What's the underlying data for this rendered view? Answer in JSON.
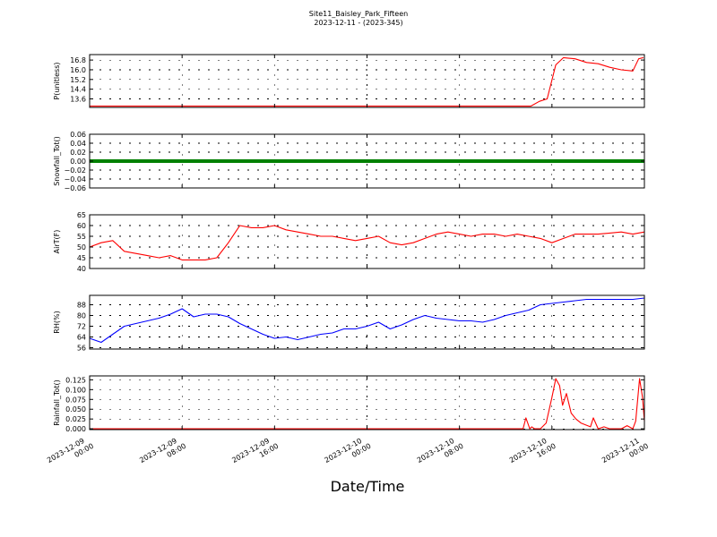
{
  "figure": {
    "title_line1": "Site11_Baisley_Park_Fifteen",
    "title_line2": "2023-12-11 - (2023-345)",
    "xlabel": "Date/Time"
  },
  "chart_data": [
    {
      "type": "line",
      "ylabel": "P(unitless)",
      "ylim": [
        12.9,
        17.25
      ],
      "yticks": [
        "13.6",
        "14.4",
        "15.2",
        "16.0",
        "16.8"
      ],
      "color": "#ff0000",
      "grid": true,
      "x": [
        "2023-12-09 00:00",
        "2023-12-10 14:10",
        "2023-12-10 14:55",
        "2023-12-10 15:35",
        "2023-12-10 16:20",
        "2023-12-10 17:00",
        "2023-12-10 18:00",
        "2023-12-10 19:00",
        "2023-12-10 20:00",
        "2023-12-10 21:00",
        "2023-12-10 22:00",
        "2023-12-10 23:00",
        "2023-12-10 23:30",
        "2023-12-10 23:55"
      ],
      "values": [
        13.0,
        13.0,
        13.4,
        13.6,
        16.4,
        17.0,
        16.9,
        16.6,
        16.5,
        16.2,
        16.0,
        15.9,
        16.9,
        17.0
      ]
    },
    {
      "type": "line",
      "ylabel": "Snowfall_Tot()",
      "ylim": [
        -0.06,
        0.06
      ],
      "yticks": [
        "−0.06",
        "−0.04",
        "−0.02",
        "0.00",
        "0.02",
        "0.04",
        "0.06"
      ],
      "color": "#008000",
      "grid": true,
      "x": [
        "2023-12-09 00:00",
        "2023-12-11 00:00"
      ],
      "values": [
        0,
        0
      ]
    },
    {
      "type": "line",
      "ylabel": "AirT(F)",
      "ylim": [
        40,
        65
      ],
      "yticks": [
        "40",
        "45",
        "50",
        "55",
        "60",
        "65"
      ],
      "color": "#ff0000",
      "grid": true,
      "x": [
        "2023-12-09 00:00",
        "2023-12-09 01:00",
        "2023-12-09 02:00",
        "2023-12-09 03:00",
        "2023-12-09 04:00",
        "2023-12-09 05:00",
        "2023-12-09 06:00",
        "2023-12-09 07:00",
        "2023-12-09 08:00",
        "2023-12-09 09:00",
        "2023-12-09 10:00",
        "2023-12-09 11:00",
        "2023-12-09 12:00",
        "2023-12-09 13:00",
        "2023-12-09 14:00",
        "2023-12-09 15:00",
        "2023-12-09 16:00",
        "2023-12-09 17:00",
        "2023-12-09 18:00",
        "2023-12-09 19:00",
        "2023-12-09 20:00",
        "2023-12-09 21:00",
        "2023-12-09 22:00",
        "2023-12-09 23:00",
        "2023-12-10 00:00",
        "2023-12-10 01:00",
        "2023-12-10 02:00",
        "2023-12-10 03:00",
        "2023-12-10 04:00",
        "2023-12-10 05:00",
        "2023-12-10 06:00",
        "2023-12-10 07:00",
        "2023-12-10 08:00",
        "2023-12-10 09:00",
        "2023-12-10 10:00",
        "2023-12-10 11:00",
        "2023-12-10 12:00",
        "2023-12-10 13:00",
        "2023-12-10 14:00",
        "2023-12-10 15:00",
        "2023-12-10 16:00",
        "2023-12-10 17:00",
        "2023-12-10 18:00",
        "2023-12-10 19:00",
        "2023-12-10 20:00",
        "2023-12-10 21:00",
        "2023-12-10 22:00",
        "2023-12-10 23:00",
        "2023-12-11 00:00"
      ],
      "values": [
        50,
        52,
        53,
        48,
        47,
        46,
        45,
        46,
        44,
        44,
        44,
        45,
        52,
        60,
        59,
        59,
        60,
        58,
        57,
        56,
        55,
        55,
        54,
        53,
        54,
        55,
        52,
        51,
        52,
        54,
        56,
        57,
        56,
        55,
        56,
        56,
        55,
        56,
        55,
        54,
        52,
        54,
        56,
        56,
        56,
        56.5,
        57,
        56,
        57
      ]
    },
    {
      "type": "line",
      "ylabel": "RH(%)",
      "ylim": [
        55,
        95
      ],
      "yticks": [
        "56",
        "64",
        "72",
        "80",
        "88"
      ],
      "color": "#0000ff",
      "grid": true,
      "x": [
        "2023-12-09 00:00",
        "2023-12-09 01:00",
        "2023-12-09 02:00",
        "2023-12-09 03:00",
        "2023-12-09 04:00",
        "2023-12-09 05:00",
        "2023-12-09 06:00",
        "2023-12-09 07:00",
        "2023-12-09 08:00",
        "2023-12-09 09:00",
        "2023-12-09 10:00",
        "2023-12-09 11:00",
        "2023-12-09 12:00",
        "2023-12-09 13:00",
        "2023-12-09 14:00",
        "2023-12-09 15:00",
        "2023-12-09 16:00",
        "2023-12-09 17:00",
        "2023-12-09 18:00",
        "2023-12-09 19:00",
        "2023-12-09 20:00",
        "2023-12-09 21:00",
        "2023-12-09 22:00",
        "2023-12-09 23:00",
        "2023-12-10 00:00",
        "2023-12-10 01:00",
        "2023-12-10 02:00",
        "2023-12-10 03:00",
        "2023-12-10 04:00",
        "2023-12-10 05:00",
        "2023-12-10 06:00",
        "2023-12-10 07:00",
        "2023-12-10 08:00",
        "2023-12-10 09:00",
        "2023-12-10 10:00",
        "2023-12-10 11:00",
        "2023-12-10 12:00",
        "2023-12-10 13:00",
        "2023-12-10 14:00",
        "2023-12-10 15:00",
        "2023-12-10 16:00",
        "2023-12-10 17:00",
        "2023-12-10 18:00",
        "2023-12-10 19:00",
        "2023-12-10 20:00",
        "2023-12-10 21:00",
        "2023-12-10 22:00",
        "2023-12-10 23:00",
        "2023-12-11 00:00"
      ],
      "values": [
        63,
        60,
        66,
        72,
        74,
        76,
        78,
        81,
        85,
        79,
        81,
        81,
        79,
        74,
        70,
        66,
        63,
        64,
        62,
        64,
        66,
        67,
        70,
        70,
        72,
        75,
        70,
        73,
        77,
        80,
        78,
        77,
        76,
        76,
        75,
        77,
        80,
        82,
        84,
        88,
        89,
        90,
        91,
        92,
        92,
        92,
        92,
        92,
        93
      ]
    },
    {
      "type": "line",
      "ylabel": "Rainfall_Tot()",
      "ylim": [
        -0.002,
        0.135
      ],
      "yticks": [
        "0.000",
        "0.025",
        "0.050",
        "0.075",
        "0.100",
        "0.125"
      ],
      "color": "#ff0000",
      "grid": true,
      "x": [
        "2023-12-09 00:00",
        "2023-12-10 13:30",
        "2023-12-10 13:45",
        "2023-12-10 14:05",
        "2023-12-10 14:15",
        "2023-12-10 14:30",
        "2023-12-10 15:00",
        "2023-12-10 15:30",
        "2023-12-10 16:00",
        "2023-12-10 16:20",
        "2023-12-10 16:40",
        "2023-12-10 16:55",
        "2023-12-10 17:15",
        "2023-12-10 17:40",
        "2023-12-10 18:05",
        "2023-12-10 18:30",
        "2023-12-10 18:55",
        "2023-12-10 19:20",
        "2023-12-10 19:35",
        "2023-12-10 20:00",
        "2023-12-10 20:30",
        "2023-12-10 21:00",
        "2023-12-10 22:00",
        "2023-12-10 22:30",
        "2023-12-10 23:00",
        "2023-12-10 23:15",
        "2023-12-10 23:35",
        "2023-12-10 23:50",
        "2023-12-11 00:00"
      ],
      "values": [
        0,
        0,
        0.028,
        0,
        0.005,
        0,
        0,
        0.015,
        0.08,
        0.128,
        0.11,
        0.06,
        0.09,
        0.04,
        0.025,
        0.015,
        0.01,
        0.005,
        0.028,
        0,
        0.005,
        0,
        0,
        0.008,
        0,
        0.02,
        0.128,
        0.08,
        0.02
      ]
    }
  ],
  "xaxis": {
    "range": [
      "2023-12-09 00:00",
      "2023-12-11 00:00"
    ],
    "tick_labels": [
      [
        "2023-12-09",
        "00:00"
      ],
      [
        "2023-12-09",
        "08:00"
      ],
      [
        "2023-12-09",
        "16:00"
      ],
      [
        "2023-12-10",
        "00:00"
      ],
      [
        "2023-12-10",
        "08:00"
      ],
      [
        "2023-12-10",
        "16:00"
      ],
      [
        "2023-12-11",
        "00:00"
      ]
    ]
  }
}
